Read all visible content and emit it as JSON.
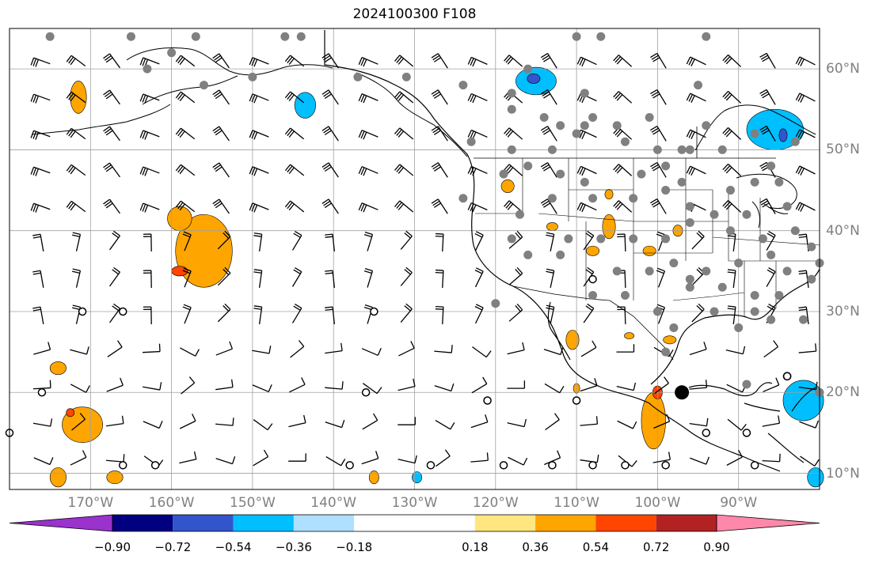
{
  "title": "2024100300 F108",
  "map": {
    "projection": "PlateCarree",
    "extent": {
      "lon_min": -180,
      "lon_max": -80,
      "lat_min": 8,
      "lat_max": 65
    },
    "lon_ticks": [
      {
        "value": -170,
        "label": "170°W"
      },
      {
        "value": -160,
        "label": "160°W"
      },
      {
        "value": -150,
        "label": "150°W"
      },
      {
        "value": -140,
        "label": "140°W"
      },
      {
        "value": -130,
        "label": "130°W"
      },
      {
        "value": -120,
        "label": "120°W"
      },
      {
        "value": -110,
        "label": "110°W"
      },
      {
        "value": -100,
        "label": "100°W"
      },
      {
        "value": -90,
        "label": "90°W"
      }
    ],
    "lat_ticks": [
      {
        "value": 60,
        "label": "60°N"
      },
      {
        "value": 50,
        "label": "50°N"
      },
      {
        "value": 40,
        "label": "40°N"
      },
      {
        "value": 30,
        "label": "30°N"
      },
      {
        "value": 20,
        "label": "20°N"
      },
      {
        "value": 10,
        "label": "10°N"
      }
    ],
    "grid": true,
    "gridline_color": "#a0a0a0",
    "coastline_color": "#000000"
  },
  "chart_data": {
    "type": "heatmap",
    "contour_fill_regions": [
      {
        "lon": -171.5,
        "lat": 56.5,
        "rlon": 1.0,
        "rlat": 2.0,
        "value": 0.45
      },
      {
        "lon": -156,
        "lat": 37.5,
        "rlon": 3.5,
        "rlat": 4.5,
        "value": 0.45
      },
      {
        "lon": -159,
        "lat": 41.5,
        "rlon": 1.5,
        "rlat": 1.5,
        "value": 0.45
      },
      {
        "lon": -159,
        "lat": 35,
        "rlon": 1.0,
        "rlat": 0.6,
        "value": 0.63
      },
      {
        "lon": -174,
        "lat": 23,
        "rlon": 1.0,
        "rlat": 0.8,
        "value": 0.45
      },
      {
        "lon": -171,
        "lat": 16,
        "rlon": 2.5,
        "rlat": 2.2,
        "value": 0.45
      },
      {
        "lon": -172.5,
        "lat": 17.5,
        "rlon": 0.5,
        "rlat": 0.5,
        "value": 0.63
      },
      {
        "lon": -174,
        "lat": 9.5,
        "rlon": 1.0,
        "rlat": 1.2,
        "value": 0.45
      },
      {
        "lon": -167,
        "lat": 9.5,
        "rlon": 1.0,
        "rlat": 0.8,
        "value": 0.45
      },
      {
        "lon": -143.5,
        "lat": 55.5,
        "rlon": 1.3,
        "rlat": 1.6,
        "value": -0.45
      },
      {
        "lon": -115,
        "lat": 58.5,
        "rlon": 2.5,
        "rlat": 1.7,
        "value": -0.45
      },
      {
        "lon": -115.3,
        "lat": 58.8,
        "rlon": 0.8,
        "rlat": 0.6,
        "value": -0.63
      },
      {
        "lon": -85.5,
        "lat": 52.5,
        "rlon": 3.5,
        "rlat": 2.5,
        "value": -0.45
      },
      {
        "lon": -84.5,
        "lat": 51.8,
        "rlon": 0.5,
        "rlat": 0.8,
        "value": -0.63
      },
      {
        "lon": -82,
        "lat": 19,
        "rlon": 2.5,
        "rlat": 2.5,
        "value": -0.45
      },
      {
        "lon": -80.5,
        "lat": 9.5,
        "rlon": 1.0,
        "rlat": 1.2,
        "value": -0.45
      },
      {
        "lon": -129.7,
        "lat": 9.5,
        "rlon": 0.6,
        "rlat": 0.7,
        "value": -0.45
      },
      {
        "lon": -118.5,
        "lat": 45.5,
        "rlon": 0.8,
        "rlat": 0.8,
        "value": 0.45
      },
      {
        "lon": -113,
        "lat": 40.5,
        "rlon": 0.7,
        "rlat": 0.5,
        "value": 0.45
      },
      {
        "lon": -108,
        "lat": 37.5,
        "rlon": 0.8,
        "rlat": 0.6,
        "value": 0.45
      },
      {
        "lon": -106,
        "lat": 40.5,
        "rlon": 0.8,
        "rlat": 1.5,
        "value": 0.45
      },
      {
        "lon": -106,
        "lat": 44.5,
        "rlon": 0.5,
        "rlat": 0.6,
        "value": 0.45
      },
      {
        "lon": -101,
        "lat": 37.5,
        "rlon": 0.8,
        "rlat": 0.6,
        "value": 0.45
      },
      {
        "lon": -97.5,
        "lat": 40,
        "rlon": 0.6,
        "rlat": 0.7,
        "value": 0.45
      },
      {
        "lon": -110.5,
        "lat": 26.5,
        "rlon": 0.8,
        "rlat": 1.2,
        "value": 0.45
      },
      {
        "lon": -100.5,
        "lat": 16.5,
        "rlon": 1.5,
        "rlat": 3.5,
        "value": 0.45
      },
      {
        "lon": -100,
        "lat": 20,
        "rlon": 0.6,
        "rlat": 0.8,
        "value": 0.63
      },
      {
        "lon": -110,
        "lat": 20.5,
        "rlon": 0.4,
        "rlat": 0.6,
        "value": 0.45
      },
      {
        "lon": -98.5,
        "lat": 26.5,
        "rlon": 0.8,
        "rlat": 0.5,
        "value": 0.45
      },
      {
        "lon": -103.5,
        "lat": 27,
        "rlon": 0.6,
        "rlat": 0.4,
        "value": 0.45
      },
      {
        "lon": -135,
        "lat": 9.5,
        "rlon": 0.6,
        "rlat": 0.8,
        "value": 0.45
      }
    ],
    "barb_grid": {
      "lon_start": -176,
      "lon_step": 4.5,
      "lat_start": 61,
      "lat_step": -4.5,
      "rows": 13,
      "cols": 23
    },
    "station_markers": [
      [
        -165,
        64
      ],
      [
        -163,
        60
      ],
      [
        -160,
        62
      ],
      [
        -175,
        64
      ],
      [
        -157,
        64
      ],
      [
        -156,
        58
      ],
      [
        -150,
        59
      ],
      [
        -146,
        64
      ],
      [
        -144,
        64
      ],
      [
        -137,
        59
      ],
      [
        -131,
        59
      ],
      [
        -124,
        58
      ],
      [
        -118,
        57
      ],
      [
        -109,
        57
      ],
      [
        -116,
        60
      ],
      [
        -110,
        64
      ],
      [
        -107,
        64
      ],
      [
        -94,
        64
      ],
      [
        -95,
        58
      ],
      [
        -118,
        55
      ],
      [
        -114,
        54
      ],
      [
        -112,
        53
      ],
      [
        -109,
        53
      ],
      [
        -108,
        54
      ],
      [
        -105,
        53
      ],
      [
        -101,
        54
      ],
      [
        -100,
        50
      ],
      [
        -97,
        50
      ],
      [
        -94,
        53
      ],
      [
        -123,
        51
      ],
      [
        -118,
        50
      ],
      [
        -113,
        50
      ],
      [
        -110,
        52
      ],
      [
        -104,
        51
      ],
      [
        -96,
        50
      ],
      [
        -92,
        50
      ],
      [
        -88,
        52
      ],
      [
        -83,
        51
      ],
      [
        -86,
        48
      ],
      [
        -119,
        47
      ],
      [
        -116,
        48
      ],
      [
        -112,
        47
      ],
      [
        -109,
        46
      ],
      [
        -102,
        47
      ],
      [
        -99,
        48
      ],
      [
        -97,
        46
      ],
      [
        -91,
        45
      ],
      [
        -88,
        46
      ],
      [
        -85,
        46
      ],
      [
        -84,
        43
      ],
      [
        -113,
        44
      ],
      [
        -108,
        44
      ],
      [
        -103,
        44
      ],
      [
        -99,
        45
      ],
      [
        -96,
        43
      ],
      [
        -93,
        42
      ],
      [
        -89,
        42
      ],
      [
        -124,
        44
      ],
      [
        -117,
        42
      ],
      [
        -111,
        39
      ],
      [
        -107,
        39
      ],
      [
        -103,
        39
      ],
      [
        -99,
        39
      ],
      [
        -96,
        41
      ],
      [
        -91,
        40
      ],
      [
        -87,
        39
      ],
      [
        -83,
        40
      ],
      [
        -118,
        39
      ],
      [
        -112,
        37
      ],
      [
        -105,
        35
      ],
      [
        -101,
        35
      ],
      [
        -98,
        36
      ],
      [
        -94,
        35
      ],
      [
        -90,
        36
      ],
      [
        -86,
        37
      ],
      [
        -81,
        38
      ],
      [
        -96,
        33
      ],
      [
        -92,
        33
      ],
      [
        -88,
        32
      ],
      [
        -85,
        32
      ],
      [
        -81,
        34
      ],
      [
        -90,
        28
      ],
      [
        -86,
        29
      ],
      [
        -82,
        29
      ],
      [
        -93,
        30
      ],
      [
        -100,
        30
      ],
      [
        -104,
        32
      ],
      [
        -108,
        32
      ],
      [
        -98,
        28
      ],
      [
        -88,
        30
      ],
      [
        -84,
        35
      ],
      [
        -80,
        36
      ],
      [
        -96,
        34
      ],
      [
        -116,
        37
      ],
      [
        -99,
        25
      ],
      [
        -120,
        31
      ],
      [
        -84,
        22
      ],
      [
        -80,
        20
      ],
      [
        -89,
        21
      ]
    ],
    "clear_markers": [
      [
        -171,
        30
      ],
      [
        -166,
        30
      ],
      [
        -135,
        30
      ],
      [
        -176,
        20
      ],
      [
        -136,
        20
      ],
      [
        -180,
        15
      ],
      [
        -166,
        11
      ],
      [
        -162,
        11
      ],
      [
        -138,
        11
      ],
      [
        -128,
        11
      ],
      [
        -119,
        11
      ],
      [
        -113,
        11
      ],
      [
        -108,
        11
      ],
      [
        -104,
        11
      ],
      [
        -99,
        11
      ],
      [
        -94,
        15
      ],
      [
        -89,
        15
      ],
      [
        -88,
        11
      ],
      [
        -108,
        34
      ],
      [
        -121,
        19
      ],
      [
        -110,
        19
      ],
      [
        -84,
        22
      ]
    ],
    "large_marker": [
      -97,
      20
    ],
    "colorbar": {
      "label": "",
      "bounds": [
        -1.08,
        -0.9,
        -0.72,
        -0.54,
        -0.36,
        -0.18,
        0.18,
        0.36,
        0.54,
        0.72,
        0.9,
        1.08
      ],
      "tick_labels": [
        {
          "value": -0.9,
          "label": "−0.90"
        },
        {
          "value": -0.72,
          "label": "−0.72"
        },
        {
          "value": -0.54,
          "label": "−0.54"
        },
        {
          "value": -0.36,
          "label": "−0.36"
        },
        {
          "value": -0.18,
          "label": "−0.18"
        },
        {
          "value": 0.18,
          "label": "0.18"
        },
        {
          "value": 0.36,
          "label": "0.36"
        },
        {
          "value": 0.54,
          "label": "0.54"
        },
        {
          "value": 0.72,
          "label": "0.72"
        },
        {
          "value": 0.9,
          "label": "0.90"
        }
      ],
      "colors": [
        "#9933cc",
        "#000080",
        "#3355cc",
        "#00bfff",
        "#b0e0ff",
        "#ffffff",
        "#ffe680",
        "#ffa500",
        "#ff4500",
        "#b22222",
        "#ff88aa"
      ],
      "extend": "both"
    }
  }
}
